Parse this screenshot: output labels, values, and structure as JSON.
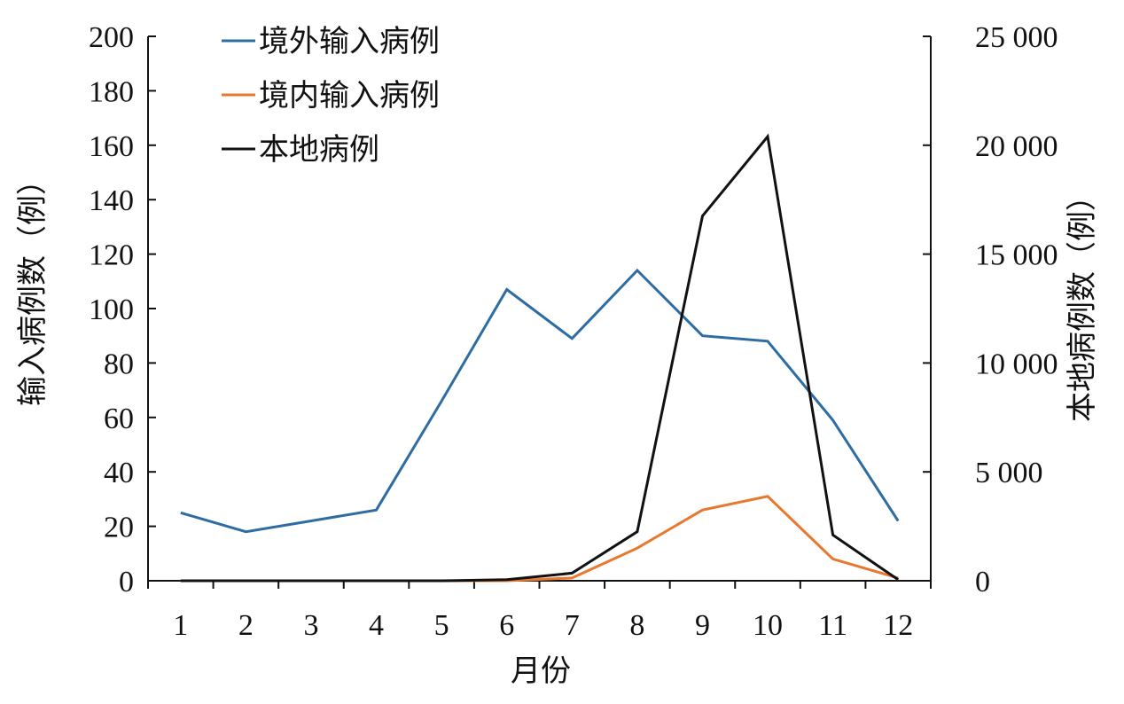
{
  "chart_data": {
    "type": "line",
    "x": [
      1,
      2,
      3,
      4,
      5,
      6,
      7,
      8,
      9,
      10,
      11,
      12
    ],
    "xlabel": "月份",
    "ylabel_left": "输入病例数（例）",
    "ylabel_right": "本地病例数（例）",
    "ylim_left": [
      0,
      200
    ],
    "ylim_right": [
      0,
      25000
    ],
    "yticks_left": [
      "0",
      "20",
      "40",
      "60",
      "80",
      "100",
      "120",
      "140",
      "160",
      "180",
      "200"
    ],
    "yticks_right": [
      "0",
      "5 000",
      "10 000",
      "15 000",
      "20 000",
      "25 000"
    ],
    "legend_position": "top-left",
    "grid": false,
    "series": [
      {
        "name": "境外输入病例",
        "axis": "left",
        "color": "#2e6ca4",
        "values": [
          25,
          18,
          22,
          26,
          66,
          107,
          89,
          114,
          90,
          88,
          59,
          22
        ]
      },
      {
        "name": "境内输入病例",
        "axis": "left",
        "color": "#e8782e",
        "values": [
          0,
          0,
          0,
          0,
          0,
          0,
          1,
          12,
          26,
          31,
          8,
          1
        ]
      },
      {
        "name": "本地病例",
        "axis": "right",
        "color": "#111111",
        "values": [
          0,
          0,
          0,
          0,
          0,
          50,
          350,
          2250,
          16750,
          20400,
          2100,
          50
        ]
      }
    ]
  }
}
